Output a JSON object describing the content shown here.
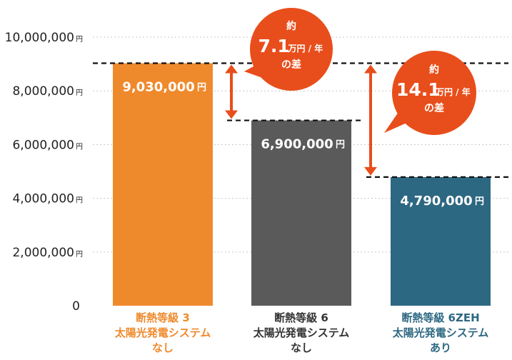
{
  "chart_data": {
    "type": "bar",
    "title": "",
    "xlabel": "",
    "ylabel": "",
    "ylim": [
      0,
      10000000
    ],
    "grid": true,
    "y_ticks": [
      {
        "value": 0,
        "label": "0",
        "unit": ""
      },
      {
        "value": 2000000,
        "label": "2,000,000",
        "unit": "円"
      },
      {
        "value": 4000000,
        "label": "4,000,000",
        "unit": "円"
      },
      {
        "value": 6000000,
        "label": "6,000,000",
        "unit": "円"
      },
      {
        "value": 8000000,
        "label": "8,000,000",
        "unit": "円"
      },
      {
        "value": 10000000,
        "label": "10,000,000",
        "unit": "円"
      }
    ],
    "bars": [
      {
        "category_lines": [
          "断熱等級 3",
          "太陽光発電システム",
          "なし"
        ],
        "value": 9030000,
        "value_label": "9,030,000",
        "unit": "円",
        "color": "#ef8a2c",
        "label_color": "#ef8a2c"
      },
      {
        "category_lines": [
          "断熱等級 6",
          "太陽光発電システム",
          "なし"
        ],
        "value": 6900000,
        "value_label": "6,900,000",
        "unit": "円",
        "color": "#5b5a5b",
        "label_color": "#333333"
      },
      {
        "category_lines": [
          "断熱等級 6ZEH",
          "太陽光発電システム",
          "あり"
        ],
        "value": 4790000,
        "value_label": "4,790,000",
        "unit": "円",
        "color": "#2d6882",
        "label_color": "#2d6882"
      }
    ],
    "annotations": [
      {
        "from_bar": 0,
        "to_bar": 1,
        "prefix": "約",
        "amount": "7.1",
        "unit": "万円 / 年",
        "suffix": "の差"
      },
      {
        "from_bar": 0,
        "to_bar": 2,
        "prefix": "約",
        "amount": "14.1",
        "unit": "万円 / 年",
        "suffix": "の差"
      }
    ],
    "colors": {
      "callout": "#e84e1b",
      "arrow": "#e84e1b",
      "grid": "#c8c8c8",
      "axis_text": "#222222"
    }
  }
}
